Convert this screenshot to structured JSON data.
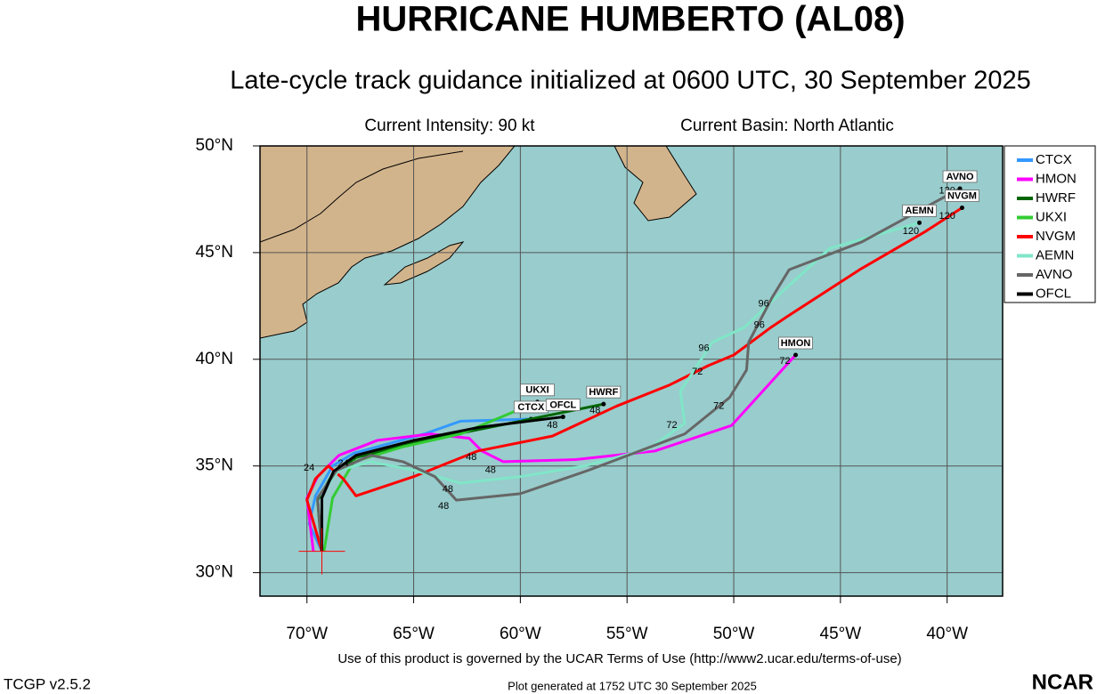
{
  "chart_data": {
    "type": "track-map",
    "title": "HURRICANE HUMBERTO (AL08)",
    "subtitle": "Late-cycle track guidance initialized at 0600 UTC, 30 September 2025",
    "info_left": "Current Intensity: 90 kt",
    "info_right": "Current Basin: North Atlantic",
    "xlim": [
      -72.2,
      -37.4
    ],
    "ylim": [
      28.9,
      50
    ],
    "xticks": [
      {
        "value": -70,
        "label": "70°W"
      },
      {
        "value": -65,
        "label": "65°W"
      },
      {
        "value": -60,
        "label": "60°W"
      },
      {
        "value": -55,
        "label": "55°W"
      },
      {
        "value": -50,
        "label": "50°W"
      },
      {
        "value": -45,
        "label": "45°W"
      },
      {
        "value": -40,
        "label": "40°W"
      }
    ],
    "yticks": [
      {
        "value": 30,
        "label": "30°N"
      },
      {
        "value": 35,
        "label": "35°N"
      },
      {
        "value": 40,
        "label": "40°N"
      },
      {
        "value": 45,
        "label": "45°N"
      },
      {
        "value": 50,
        "label": "50°N"
      }
    ],
    "grid": true,
    "legend": "right",
    "series": [
      {
        "name": "CTCX",
        "color": "#3399ff",
        "x": [
          -69.3,
          -69.9,
          -69.6,
          -68.8,
          -67.8,
          -64.5,
          -62.8,
          -59.5
        ],
        "values": [
          31.0,
          32.3,
          33.6,
          35.0,
          35.6,
          36.5,
          37.1,
          37.2
        ]
      },
      {
        "name": "HMON",
        "color": "#ff00ff",
        "x": [
          -69.7,
          -70.0,
          -69.5,
          -68.5,
          -66.7,
          -64.2,
          -62.4,
          -61.8,
          -60.8,
          -57.4,
          -53.7,
          -50.1,
          -47.1
        ],
        "values": [
          31.0,
          33.5,
          34.5,
          35.5,
          36.2,
          36.5,
          36.3,
          35.7,
          35.2,
          35.3,
          35.7,
          36.9,
          40.2
        ]
      },
      {
        "name": "HWRF",
        "color": "#006600",
        "x": [
          -69.3,
          -69.5,
          -68.8,
          -67.7,
          -64.5,
          -60.0,
          -56.1
        ],
        "values": [
          31.0,
          33.4,
          34.6,
          35.4,
          36.2,
          37.1,
          37.9
        ]
      },
      {
        "name": "UKXI",
        "color": "#33cc33",
        "x": [
          -69.2,
          -68.8,
          -67.8,
          -65.5,
          -62.8,
          -59.2
        ],
        "values": [
          31.0,
          33.5,
          35.2,
          35.9,
          36.5,
          38.0
        ]
      },
      {
        "name": "NVGM",
        "color": "#ff0000",
        "x": [
          -69.3,
          -70.0,
          -69.6,
          -69.0,
          -68.3,
          -67.7,
          -65.0,
          -62.0,
          -58.5,
          -55.5,
          -53.0,
          -51.2,
          -50.0,
          -48.25,
          -47.5,
          -44.1,
          -41.0,
          -39.3
        ],
        "values": [
          31.0,
          33.4,
          34.4,
          35.0,
          34.4,
          33.6,
          34.5,
          35.7,
          36.4,
          37.8,
          38.8,
          39.7,
          40.2,
          41.5,
          42.0,
          44.2,
          46.0,
          47.1
        ]
      },
      {
        "name": "AEMN",
        "color": "#80e6c8",
        "x": [
          -69.5,
          -68.5,
          -67.0,
          -65.0,
          -62.8,
          -60.0,
          -57.0,
          -54.0,
          -52.3,
          -52.5,
          -51.0,
          -49.5,
          -47.8,
          -45.5,
          -41.3
        ],
        "values": [
          33.5,
          34.8,
          35.2,
          34.8,
          34.2,
          34.5,
          35.0,
          35.8,
          37.0,
          38.5,
          40.8,
          41.5,
          43.1,
          45.2,
          46.4
        ]
      },
      {
        "name": "AVNO",
        "color": "#666666",
        "x": [
          -69.3,
          -69.5,
          -68.6,
          -67.0,
          -65.5,
          -64.0,
          -63.0,
          -60.0,
          -56.8,
          -52.3,
          -50.2,
          -49.4,
          -49.3,
          -48.2,
          -47.4,
          -44.0,
          -39.4
        ],
        "values": [
          31.0,
          33.5,
          34.8,
          35.5,
          35.2,
          34.5,
          33.4,
          33.7,
          34.8,
          36.5,
          38.2,
          39.5,
          40.8,
          42.9,
          44.2,
          45.5,
          48.0
        ]
      },
      {
        "name": "OFCL",
        "color": "#000000",
        "x": [
          -69.3,
          -69.3,
          -68.75,
          -67.7,
          -65.0,
          -62.0,
          -58.0
        ],
        "values": [
          31.0,
          33.5,
          34.75,
          35.5,
          36.2,
          36.8,
          37.3
        ]
      }
    ],
    "hour_labels": [
      {
        "text": "24",
        "lon": -68.3,
        "lat": 35.1
      },
      {
        "text": "24",
        "lon": -69.9,
        "lat": 34.9
      },
      {
        "text": "48",
        "lon": -63.4,
        "lat": 33.9
      },
      {
        "text": "48",
        "lon": -63.6,
        "lat": 33.1
      },
      {
        "text": "48",
        "lon": -61.4,
        "lat": 34.8
      },
      {
        "text": "48",
        "lon": -62.3,
        "lat": 35.4
      },
      {
        "text": "48",
        "lon": -58.5,
        "lat": 36.9
      },
      {
        "text": "48",
        "lon": -56.5,
        "lat": 37.6
      },
      {
        "text": "72",
        "lon": -52.9,
        "lat": 36.9
      },
      {
        "text": "72",
        "lon": -50.7,
        "lat": 37.8
      },
      {
        "text": "72",
        "lon": -51.7,
        "lat": 39.4
      },
      {
        "text": "72",
        "lon": -47.6,
        "lat": 39.9
      },
      {
        "text": "96",
        "lon": -51.4,
        "lat": 40.5
      },
      {
        "text": "96",
        "lon": -48.8,
        "lat": 41.6
      },
      {
        "text": "96",
        "lon": -48.6,
        "lat": 42.6
      },
      {
        "text": "120",
        "lon": -41.7,
        "lat": 46.0
      },
      {
        "text": "120",
        "lon": -40.0,
        "lat": 46.7
      },
      {
        "text": "120",
        "lon": -40.0,
        "lat": 47.9
      }
    ],
    "footer_terms": "Use of this product is governed by the UCAR Terms of Use (http://www2.ucar.edu/terms-of-use)",
    "footer_version": "TCGP v2.5.2",
    "footer_generated": "Plot generated at 1752 UTC   30 September 2025",
    "logo": "NCAR"
  }
}
